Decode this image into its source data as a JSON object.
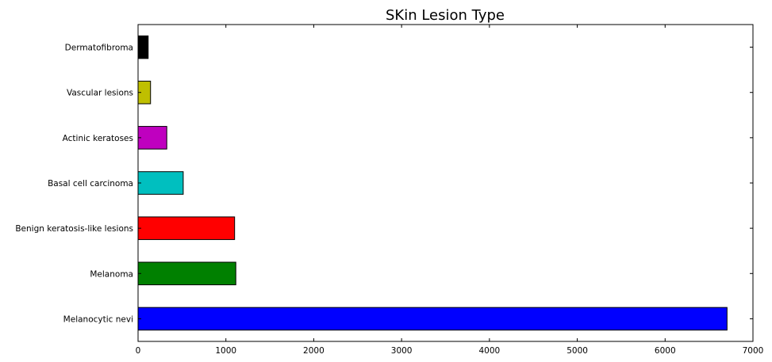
{
  "chart_data": {
    "type": "bar",
    "orientation": "horizontal",
    "title": "SKin Lesion Type",
    "xlabel": "",
    "ylabel": "",
    "xlim": [
      0,
      7000
    ],
    "x_ticks": [
      0,
      1000,
      2000,
      3000,
      4000,
      5000,
      6000,
      7000
    ],
    "grid": false,
    "legend": "none",
    "categories": [
      "Melanocytic nevi",
      "Melanoma",
      "Benign keratosis-like lesions",
      "Basal cell carcinoma",
      "Actinic keratoses",
      "Vascular lesions",
      "Dermatofibroma"
    ],
    "values": [
      6705,
      1113,
      1099,
      514,
      327,
      142,
      115
    ],
    "colors": [
      "#0000ff",
      "#008000",
      "#ff0000",
      "#00bfbf",
      "#bf00bf",
      "#bfbf00",
      "#000000"
    ]
  }
}
